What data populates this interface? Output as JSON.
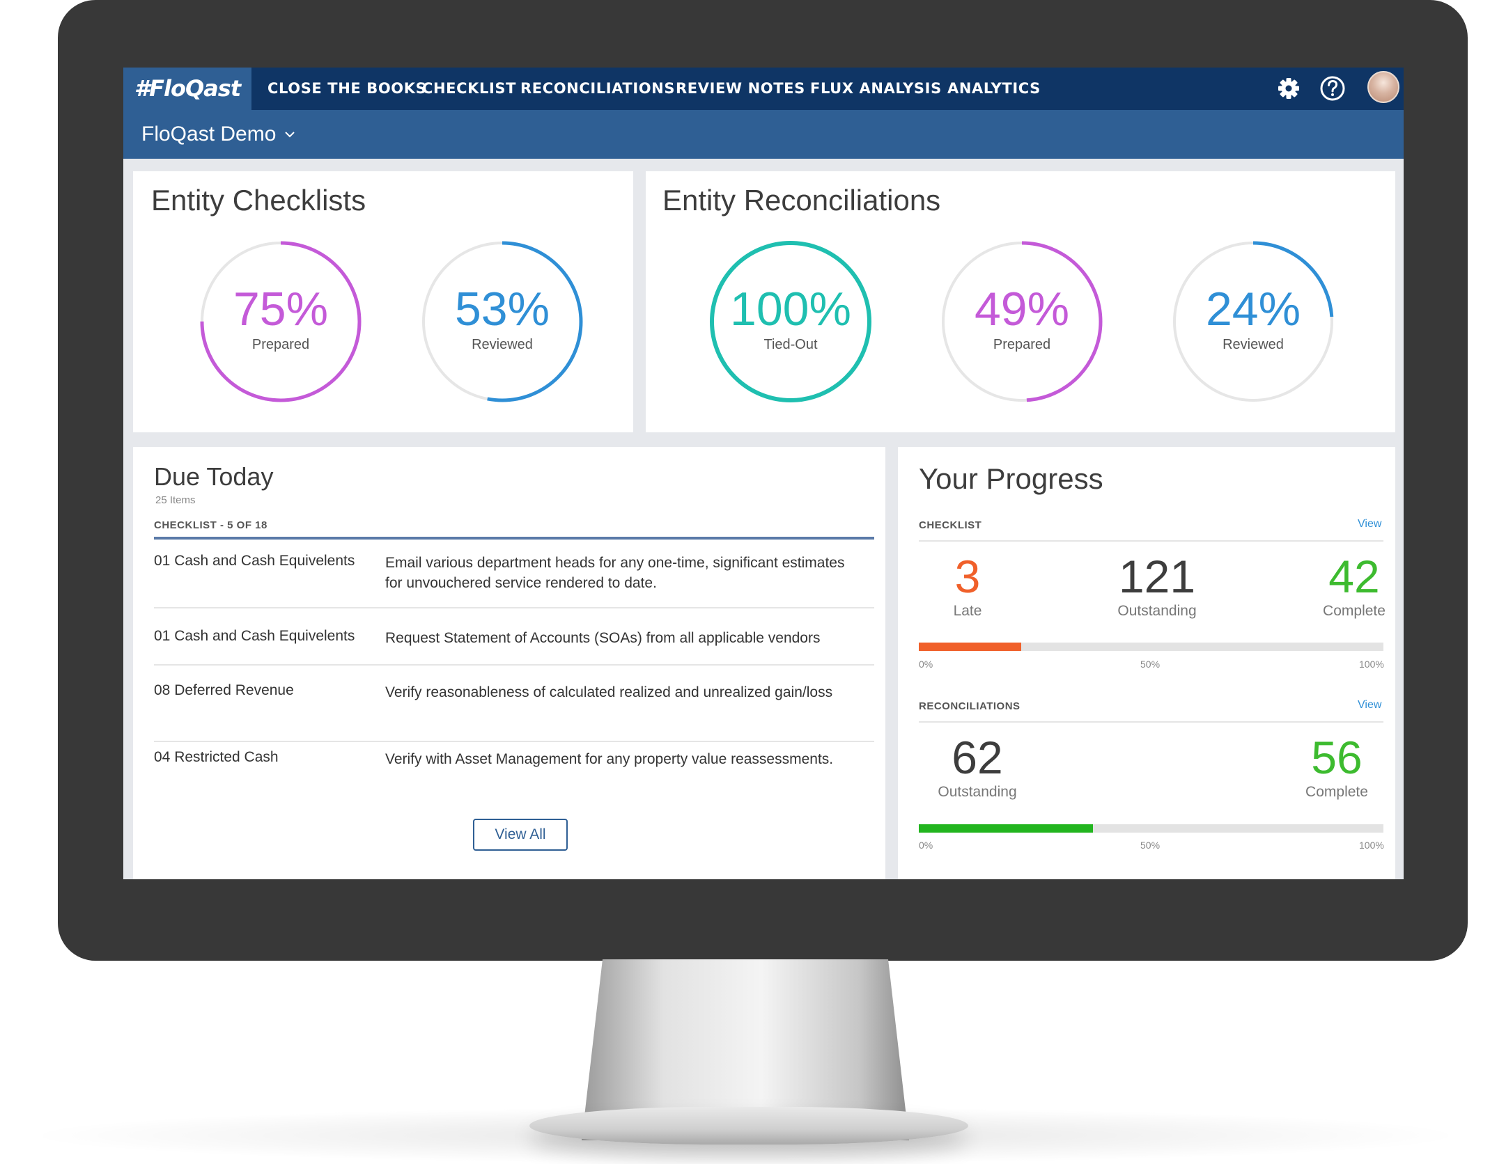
{
  "app": {
    "logo": "#FloQast",
    "nav": [
      "CLOSE THE BOOKS",
      "CHECKLIST",
      "RECONCILIATIONS",
      "REVIEW NOTES",
      "FLUX ANALYSIS",
      "ANALYTICS"
    ],
    "workspace": "FloQast Demo"
  },
  "entity_checklists": {
    "title": "Entity Checklists",
    "rings": [
      {
        "pct": "75%",
        "label": "Prepared",
        "value": 0.75,
        "color": "#c45ad8"
      },
      {
        "pct": "53%",
        "label": "Reviewed",
        "value": 0.53,
        "color": "#2f8fd6"
      }
    ]
  },
  "entity_reconciliations": {
    "title": "Entity Reconciliations",
    "rings": [
      {
        "pct": "100%",
        "label": "Tied-Out",
        "value": 1.0,
        "color": "#1fbfb0"
      },
      {
        "pct": "49%",
        "label": "Prepared",
        "value": 0.49,
        "color": "#c45ad8"
      },
      {
        "pct": "24%",
        "label": "Reviewed",
        "value": 0.24,
        "color": "#2f8fd6"
      }
    ]
  },
  "due_today": {
    "title": "Due Today",
    "count": "25 Items",
    "section": "CHECKLIST - 5 OF 18",
    "rows": [
      {
        "account": "01 Cash and Cash Equivelents",
        "task": "Email various department heads for any one-time, significant estimates for unvouchered service rendered to date."
      },
      {
        "account": "01 Cash and Cash Equivelents",
        "task": "Request Statement of Accounts (SOAs) from all applicable vendors"
      },
      {
        "account": "08 Deferred Revenue",
        "task": "Verify reasonableness of calculated realized and unrealized gain/loss"
      },
      {
        "account": "04 Restricted Cash",
        "task": "Verify with Asset Management for any property value reassessments."
      }
    ],
    "view_all": "View All"
  },
  "your_progress": {
    "title": "Your Progress",
    "checklist": {
      "label": "CHECKLIST",
      "link": "View",
      "late": {
        "value": "3",
        "label": "Late",
        "color": "#f0602a"
      },
      "outstanding": {
        "value": "121",
        "label": "Outstanding",
        "color": "#3d3d3d"
      },
      "complete": {
        "value": "42",
        "label": "Complete",
        "color": "#3dbb2f"
      },
      "progress": 0.22,
      "bar_color": "#f0602a",
      "ticks": [
        "0%",
        "50%",
        "100%"
      ]
    },
    "reconciliations": {
      "label": "RECONCILIATIONS",
      "link": "View",
      "outstanding": {
        "value": "62",
        "label": "Outstanding",
        "color": "#3d3d3d"
      },
      "complete": {
        "value": "56",
        "label": "Complete",
        "color": "#3dbb2f"
      },
      "progress": 0.375,
      "bar_color": "#22b51f",
      "ticks": [
        "0%",
        "50%",
        "100%"
      ]
    }
  }
}
